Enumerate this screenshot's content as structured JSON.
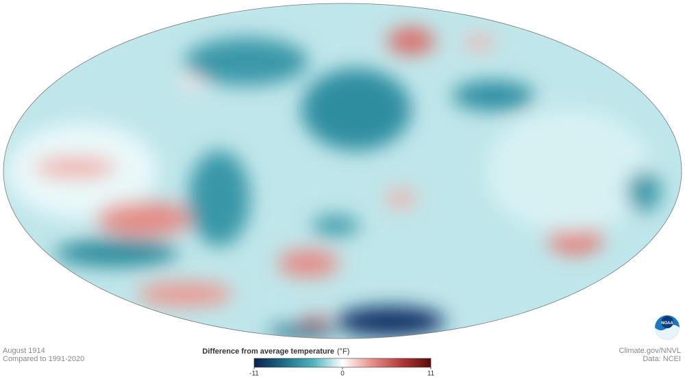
{
  "map": {
    "type": "choropleth-map",
    "logo": "NOAA"
  },
  "footer_left": {
    "date": "August 1914",
    "baseline": "Compared to 1991-2020"
  },
  "footer_right": {
    "credit": "Climate.gov/NNVL",
    "source": "Data: NCEI"
  },
  "legend": {
    "title": "Difference from average temperature",
    "unit": "(°F)",
    "range": [
      -11,
      11
    ],
    "ticks": [
      -11,
      0,
      11
    ],
    "colors": [
      "#0a2350",
      "#1d6c84",
      "#4fb3be",
      "#ffffff",
      "#e6908a",
      "#b23a3a",
      "#5a0a0a"
    ]
  }
}
